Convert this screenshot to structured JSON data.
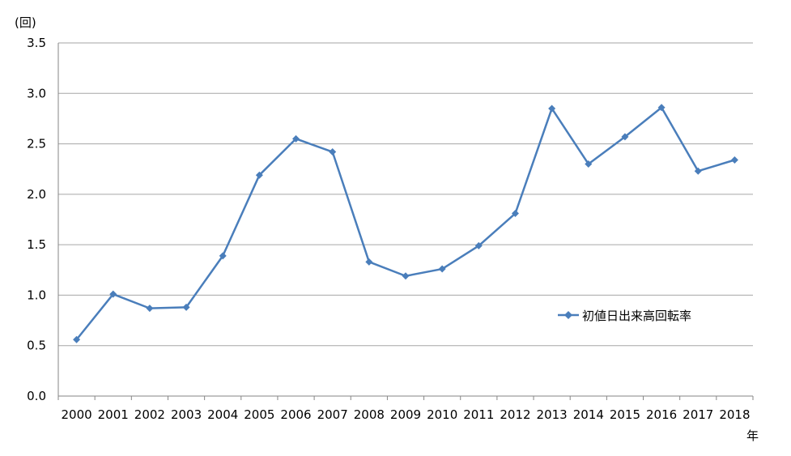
{
  "chart_data": {
    "type": "line",
    "y_unit_label": "(回)",
    "x_unit_label": "年",
    "categories": [
      "2000",
      "2001",
      "2002",
      "2003",
      "2004",
      "2005",
      "2006",
      "2007",
      "2008",
      "2009",
      "2010",
      "2011",
      "2012",
      "2013",
      "2014",
      "2015",
      "2016",
      "2017",
      "2018"
    ],
    "series": [
      {
        "name": "初値日出来高回転率",
        "color": "#4a7ebb",
        "marker": "diamond",
        "values": [
          0.56,
          1.01,
          0.87,
          0.88,
          1.39,
          2.19,
          2.55,
          2.42,
          1.33,
          1.19,
          1.26,
          1.49,
          1.81,
          2.85,
          2.3,
          2.57,
          2.86,
          2.23,
          2.34
        ]
      }
    ],
    "ylim": [
      0,
      3.5
    ],
    "yticks": [
      "0.0",
      "0.5",
      "1.0",
      "1.5",
      "2.0",
      "2.5",
      "3.0",
      "3.5"
    ],
    "grid": true,
    "legend_position": "inside-right"
  }
}
